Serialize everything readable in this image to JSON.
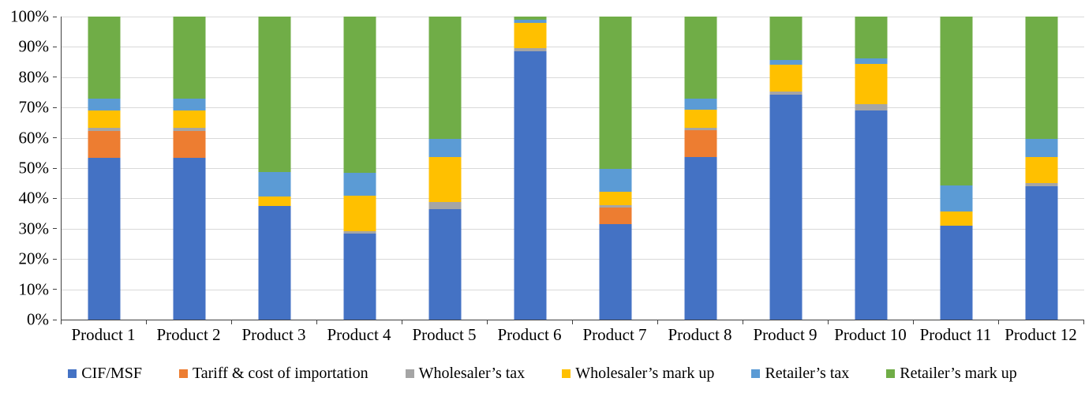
{
  "chart_data": {
    "type": "bar",
    "stacked": true,
    "percent_stacked": true,
    "title": "",
    "xlabel": "",
    "ylabel": "",
    "ylim": [
      0,
      100
    ],
    "y_tick_step": 10,
    "y_tick_labels": [
      "0%",
      "10%",
      "20%",
      "30%",
      "40%",
      "50%",
      "60%",
      "70%",
      "80%",
      "90%",
      "100%"
    ],
    "grid": true,
    "legend_position": "bottom",
    "categories": [
      "Product 1",
      "Product 2",
      "Product 3",
      "Product 4",
      "Product 5",
      "Product 6",
      "Product 7",
      "Product 8",
      "Product 9",
      "Product 10",
      "Product 11",
      "Product 12"
    ],
    "series": [
      {
        "name": "CIF/MSF",
        "color": "#4472C4",
        "values": [
          53.5,
          53.5,
          37.4,
          28.3,
          36.5,
          88.5,
          31.5,
          53.7,
          74.1,
          68.9,
          31.0,
          44.0
        ]
      },
      {
        "name": "Tariff & cost of importation",
        "color": "#ED7D31",
        "values": [
          8.7,
          8.7,
          0,
          0,
          0,
          0,
          5.5,
          8.7,
          0,
          0,
          0,
          0
        ]
      },
      {
        "name": "Wholesaler’s tax",
        "color": "#A5A5A5",
        "values": [
          1.0,
          1.0,
          0,
          1.0,
          2.2,
          1.2,
          0.7,
          0.8,
          1.1,
          2.2,
          0,
          1.1
        ]
      },
      {
        "name": "Wholesaler’s mark up",
        "color": "#FFC000",
        "values": [
          5.9,
          5.9,
          3.2,
          11.7,
          15.0,
          8.3,
          4.6,
          6.2,
          8.9,
          13.4,
          4.8,
          8.6
        ]
      },
      {
        "name": "Retailer’s tax",
        "color": "#5B9BD5",
        "values": [
          3.7,
          3.7,
          8.1,
          7.4,
          6.0,
          1.0,
          7.5,
          3.4,
          1.7,
          1.8,
          8.6,
          6.0
        ]
      },
      {
        "name": "Retailer’s mark up",
        "color": "#70AD47",
        "values": [
          27.2,
          27.2,
          51.3,
          51.6,
          40.3,
          1.0,
          50.2,
          27.2,
          14.2,
          13.7,
          55.6,
          40.3
        ]
      }
    ],
    "colors": {
      "gridline": "#D9D9D9",
      "axis": "#404040",
      "text": "#000000",
      "background": "#FFFFFF"
    }
  }
}
